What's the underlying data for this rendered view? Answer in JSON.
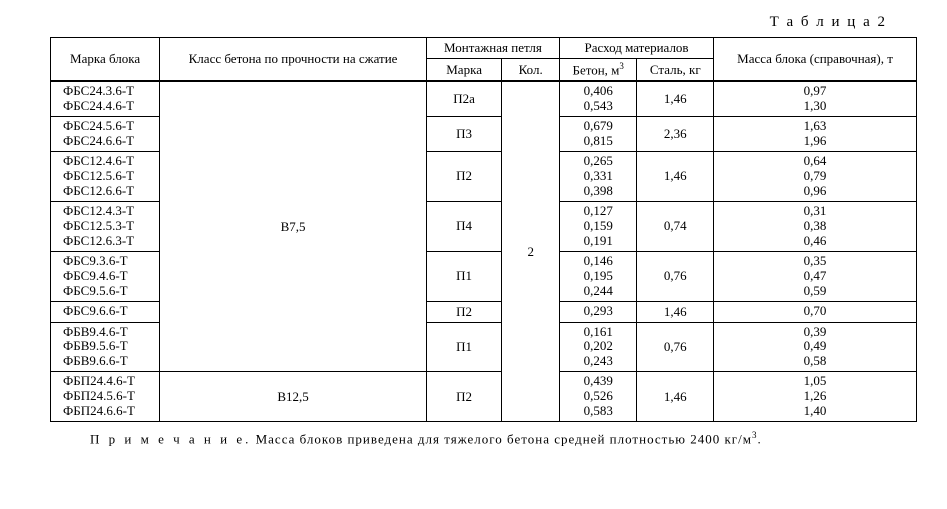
{
  "caption": "Т а б л и ц а  2",
  "headers": {
    "block_brand": "Марка блока",
    "concrete_class": "Класс бетона по прочности на сжатие",
    "mounting_loop": "Монтажная петля",
    "loop_brand": "Марка",
    "loop_qty": "Кол.",
    "materials": "Расход материалов",
    "concrete": "Бетон, м",
    "concrete_sup": "3",
    "steel": "Сталь, кг",
    "mass": "Масса блока (справочная), т"
  },
  "class1": "В7,5",
  "class2": "В12,5",
  "qty": "2",
  "rows": [
    {
      "brands": [
        "ФБС24.3.6-Т",
        "ФБС24.4.6-Т"
      ],
      "loop": "П2а",
      "concrete": [
        "0,406",
        "0,543"
      ],
      "steel": "1,46",
      "mass": [
        "0,97",
        "1,30"
      ]
    },
    {
      "brands": [
        "ФБС24.5.6-Т",
        "ФБС24.6.6-Т"
      ],
      "loop": "П3",
      "concrete": [
        "0,679",
        "0,815"
      ],
      "steel": "2,36",
      "mass": [
        "1,63",
        "1,96"
      ]
    },
    {
      "brands": [
        "ФБС12.4.6-Т",
        "ФБС12.5.6-Т",
        "ФБС12.6.6-Т"
      ],
      "loop": "П2",
      "concrete": [
        "0,265",
        "0,331",
        "0,398"
      ],
      "steel": "1,46",
      "mass": [
        "0,64",
        "0,79",
        "0,96"
      ]
    },
    {
      "brands": [
        "ФБС12.4.3-Т",
        "ФБС12.5.3-Т",
        "ФБС12.6.3-Т"
      ],
      "loop": "П4",
      "concrete": [
        "0,127",
        "0,159",
        "0,191"
      ],
      "steel": "0,74",
      "mass": [
        "0,31",
        "0,38",
        "0,46"
      ]
    },
    {
      "brands": [
        "ФБС9.3.6-Т",
        "ФБС9.4.6-Т",
        "ФБС9.5.6-Т"
      ],
      "loop": "П1",
      "concrete": [
        "0,146",
        "0,195",
        "0,244"
      ],
      "steel": "0,76",
      "mass": [
        "0,35",
        "0,47",
        "0,59"
      ]
    },
    {
      "brands": [
        "ФБС9.6.6-Т"
      ],
      "loop": "П2",
      "concrete": [
        "0,293"
      ],
      "steel": "1,46",
      "mass": [
        "0,70"
      ]
    },
    {
      "brands": [
        "ФБВ9.4.6-Т",
        "ФБВ9.5.6-Т",
        "ФБВ9.6.6-Т"
      ],
      "loop": "П1",
      "concrete": [
        "0,161",
        "0,202",
        "0,243"
      ],
      "steel": "0,76",
      "mass": [
        "0,39",
        "0,49",
        "0,58"
      ]
    },
    {
      "brands": [
        "ФБП24.4.6-Т",
        "ФБП24.5.6-Т",
        "ФБП24.6.6-Т"
      ],
      "loop": "П2",
      "concrete": [
        "0,439",
        "0,526",
        "0,583"
      ],
      "steel": "1,46",
      "mass": [
        "1,05",
        "1,26",
        "1,40"
      ]
    }
  ],
  "note_label": "П р и м е ч а н и е.",
  "note_text": "  Масса блоков приведена для тяжелого бетона средней плотностью 2400 кг/м",
  "note_sup": "3",
  "note_end": "."
}
